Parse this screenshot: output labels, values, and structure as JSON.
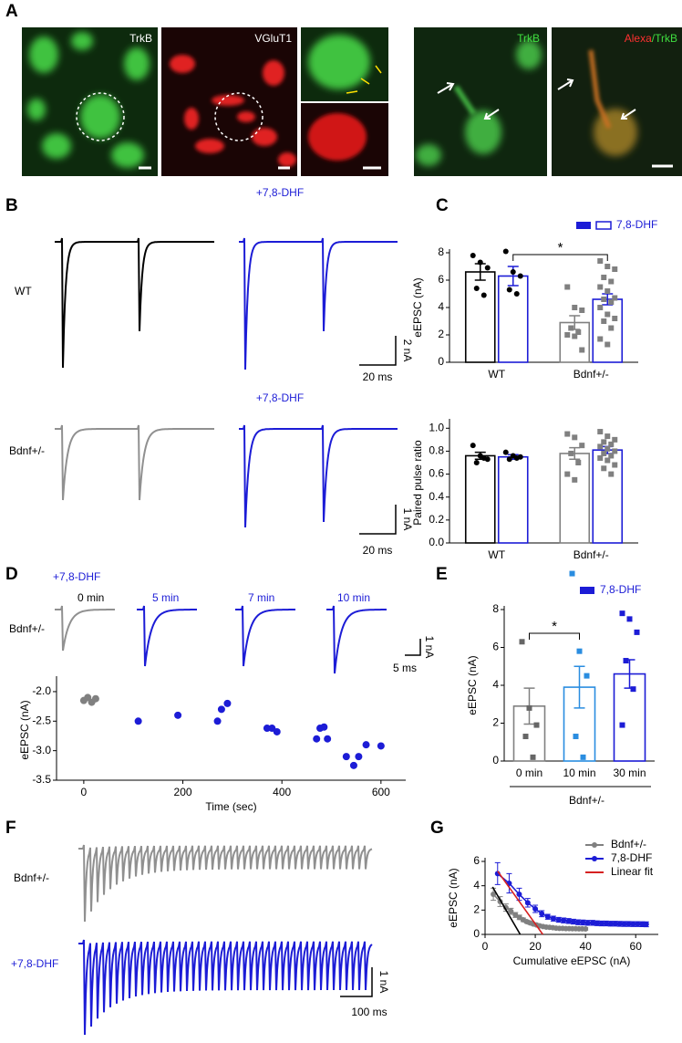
{
  "panel_labels": [
    "A",
    "B",
    "C",
    "D",
    "E",
    "F",
    "G"
  ],
  "image_labels": [
    "TrkB",
    "VGluT1",
    "TrkB"
  ],
  "overlay_label": [
    "Alexa",
    "/TrkB"
  ],
  "panel_b": {
    "condition_labels": [
      "+7,8-DHF",
      "+7,8-DHF"
    ],
    "row_labels": [
      "WT",
      "Bdnf+/-"
    ],
    "scale_bars": [
      "2 nA",
      "20 ms",
      "1 nA",
      "20 ms"
    ]
  },
  "panel_d": {
    "condition": "+7,8-DHF",
    "row_label": "Bdnf+/-",
    "times": [
      "0 min",
      "5 min",
      "7 min",
      "10 min"
    ],
    "scale_bars": [
      "1 nA",
      "5 ms"
    ]
  },
  "panel_f": {
    "row_labels": [
      "Bdnf+/-",
      "+7,8-DHF"
    ],
    "scale_bars": [
      "1 nA",
      "100 ms"
    ]
  },
  "chart_data": [
    {
      "type": "bar",
      "ylabel": "eEPSC (nA)",
      "categories": [
        "WT",
        "Bdnf+/-"
      ],
      "markers": [
        "circle",
        "square"
      ],
      "series": [
        {
          "colors": [
            "#000000",
            "#808080"
          ],
          "point_colors": [
            "#000000",
            "#808080"
          ],
          "values": [
            6.6,
            2.9
          ],
          "errors": [
            0.6,
            0.5
          ],
          "points": [
            [
              7.8,
              7.3,
              6.9,
              5.4,
              4.9
            ],
            [
              5.5,
              4.0,
              3.8,
              2.5,
              2.2,
              2.0,
              1.9,
              0.9
            ]
          ]
        },
        {
          "name": "7,8-DHF",
          "color": "#1c1cd6",
          "point_colors": [
            "#000000",
            "#808080"
          ],
          "values": [
            6.3,
            4.6
          ],
          "errors": [
            0.7,
            0.4
          ],
          "points": [
            [
              8.1,
              6.6,
              6.3,
              5.3,
              5.0
            ],
            [
              7.4,
              7.0,
              6.8,
              6.2,
              5.9,
              5.5,
              5.2,
              4.7,
              4.6,
              4.4,
              4.0,
              3.5,
              3.2,
              3.0,
              2.5,
              1.7,
              1.3
            ]
          ]
        }
      ],
      "ylim": [
        0,
        8
      ],
      "yticks": [
        0,
        2,
        4,
        6,
        8
      ],
      "annotation": "*"
    },
    {
      "type": "bar",
      "ylabel": "Paired pulse ratio",
      "categories": [
        "WT",
        "Bdnf+/-"
      ],
      "markers": [
        "circle",
        "square"
      ],
      "series": [
        {
          "colors": [
            "#000000",
            "#808080"
          ],
          "point_colors": [
            "#000000",
            "#808080"
          ],
          "values": [
            0.76,
            0.78
          ],
          "errors": [
            0.03,
            0.05
          ],
          "points": [
            [
              0.85,
              0.76,
              0.73,
              0.7,
              0.74
            ],
            [
              0.95,
              0.92,
              0.85,
              0.78,
              0.7,
              0.6,
              0.55
            ]
          ]
        },
        {
          "color": "#1c1cd6",
          "point_colors": [
            "#000000",
            "#808080"
          ],
          "values": [
            0.75,
            0.81
          ],
          "errors": [
            0.02,
            0.03
          ],
          "points": [
            [
              0.79,
              0.76,
              0.75,
              0.73,
              0.74
            ],
            [
              0.97,
              0.93,
              0.9,
              0.88,
              0.86,
              0.84,
              0.82,
              0.8,
              0.78,
              0.76,
              0.74,
              0.72,
              0.68,
              0.65,
              0.6
            ]
          ]
        }
      ],
      "ylim": [
        0,
        1.05
      ],
      "yticks": [
        {
          "value": 0,
          "label": "0.0"
        },
        0.2,
        0.4,
        0.6,
        0.8,
        {
          "value": 1,
          "label": "1.0"
        }
      ]
    },
    {
      "type": "scatter",
      "xlabel": "Time (sec)",
      "ylabel": "eEPSC (nA)",
      "series": [
        {
          "color": "#808080",
          "x": [
            0,
            8,
            16,
            24
          ],
          "y": [
            -2.15,
            -2.1,
            -2.18,
            -2.12
          ]
        },
        {
          "color": "#1c1cd6",
          "x": [
            110,
            190,
            270,
            278,
            290,
            370,
            380,
            390,
            470,
            477,
            485,
            492,
            530,
            545,
            555,
            570,
            600
          ],
          "y": [
            -2.5,
            -2.4,
            -2.5,
            -2.3,
            -2.2,
            -2.62,
            -2.62,
            -2.68,
            -2.8,
            -2.62,
            -2.6,
            -2.8,
            -3.1,
            -3.25,
            -3.1,
            -2.9,
            -2.92
          ]
        }
      ],
      "xlim": [
        -55,
        650
      ],
      "xticks": [
        0,
        200,
        400,
        600
      ],
      "ylim": [
        -3.5,
        -1.8
      ],
      "yticks": [
        {
          "value": -2,
          "label": "-2.0"
        },
        -2.5,
        {
          "value": -3,
          "label": "-3.0"
        },
        -3.5
      ]
    },
    {
      "type": "bar",
      "ylabel": "eEPSC (nA)",
      "categories": [
        "0 min",
        "10 min",
        "30 min"
      ],
      "group_label": "Bdnf+/-",
      "markers": [
        "square",
        "square",
        "square"
      ],
      "series": [
        {
          "name": "7,8-DHF",
          "color": "#1c1cd6",
          "colors": [
            "#808080",
            "#2a8de0",
            "#1c1cd6"
          ],
          "point_colors": [
            "#666666",
            "#2a8de0",
            "#1c1cd6"
          ],
          "values": [
            2.9,
            3.9,
            4.6
          ],
          "errors": [
            0.95,
            1.1,
            0.75
          ],
          "points": [
            [
              6.3,
              2.8,
              1.9,
              1.3,
              0.2
            ],
            [
              9.9,
              5.8,
              4.5,
              1.3,
              0.2
            ],
            [
              7.8,
              7.5,
              6.8,
              5.3,
              3.8,
              1.9
            ]
          ]
        }
      ],
      "ylim": [
        0,
        8
      ],
      "yticks": [
        0,
        2,
        4,
        6,
        8
      ],
      "annotation": "*"
    },
    {
      "type": "line",
      "xlabel": "Cumulative eEPSC (nA)",
      "ylabel": "eEPSC (nA)",
      "series": [
        {
          "name": "Bdnf+/-",
          "color": "#808080",
          "marker": "circle",
          "x": [
            3.3,
            6.0,
            8.3,
            10.3,
            12.1,
            13.7,
            15.2,
            16.6,
            17.9,
            19.2,
            20.5,
            21.8,
            23.1,
            24.4,
            25.7,
            27.0,
            28.3,
            29.6,
            30.9,
            32.2,
            33.5,
            34.8,
            36.1,
            37.4,
            38.7,
            40.0
          ],
          "y": [
            3.3,
            2.7,
            2.2,
            1.9,
            1.6,
            1.4,
            1.2,
            1.05,
            0.95,
            0.85,
            0.78,
            0.7,
            0.65,
            0.6,
            0.58,
            0.55,
            0.52,
            0.5,
            0.5,
            0.48,
            0.48,
            0.47,
            0.47,
            0.46,
            0.46,
            0.45
          ],
          "errors": [
            0.5,
            0.4,
            0.3,
            0.25,
            0.2,
            0.18,
            0.15,
            0.12,
            0.12,
            0.1,
            0.1,
            0.1,
            0.1,
            0.1,
            0.1,
            0.1,
            0.1,
            0.1,
            0.1,
            0.1,
            0.1,
            0.1,
            0.1,
            0.1,
            0.1,
            0.1
          ]
        },
        {
          "name": "7,8-DHF",
          "color": "#1c1cd6",
          "marker": "circle",
          "x": [
            5.0,
            9.6,
            13.6,
            17.0,
            20.0,
            22.6,
            25.0,
            27.2,
            29.3,
            31.3,
            33.3,
            35.2,
            37.1,
            39.0,
            40.9,
            42.8,
            44.6,
            46.4,
            48.2,
            50.0,
            51.8,
            53.6,
            55.4,
            57.2,
            59.0,
            60.8,
            62.6,
            64.2
          ],
          "y": [
            5.0,
            4.2,
            3.3,
            2.6,
            2.1,
            1.7,
            1.45,
            1.3,
            1.2,
            1.15,
            1.1,
            1.05,
            1.0,
            0.98,
            0.95,
            0.95,
            0.92,
            0.9,
            0.9,
            0.88,
            0.88,
            0.87,
            0.86,
            0.86,
            0.85,
            0.85,
            0.84,
            0.83
          ],
          "errors": [
            0.9,
            0.8,
            0.5,
            0.35,
            0.3,
            0.25,
            0.2,
            0.2,
            0.2,
            0.2,
            0.2,
            0.2,
            0.2,
            0.2,
            0.2,
            0.2,
            0.2,
            0.2,
            0.2,
            0.2,
            0.2,
            0.2,
            0.2,
            0.2,
            0.2,
            0.2,
            0.2,
            0.2
          ]
        },
        {
          "name": "Linear fit",
          "color": "#d62020",
          "marker": "none",
          "x": [
            5,
            23
          ],
          "y": [
            5.2,
            0
          ]
        },
        {
          "color": "#000000",
          "marker": "none",
          "x": [
            3,
            14
          ],
          "y": [
            3.9,
            0
          ]
        }
      ],
      "xlim": [
        0,
        69
      ],
      "xticks": [
        0,
        20,
        40,
        60
      ],
      "ylim": [
        0,
        6
      ],
      "yticks": [
        0,
        2,
        4,
        6
      ]
    }
  ]
}
